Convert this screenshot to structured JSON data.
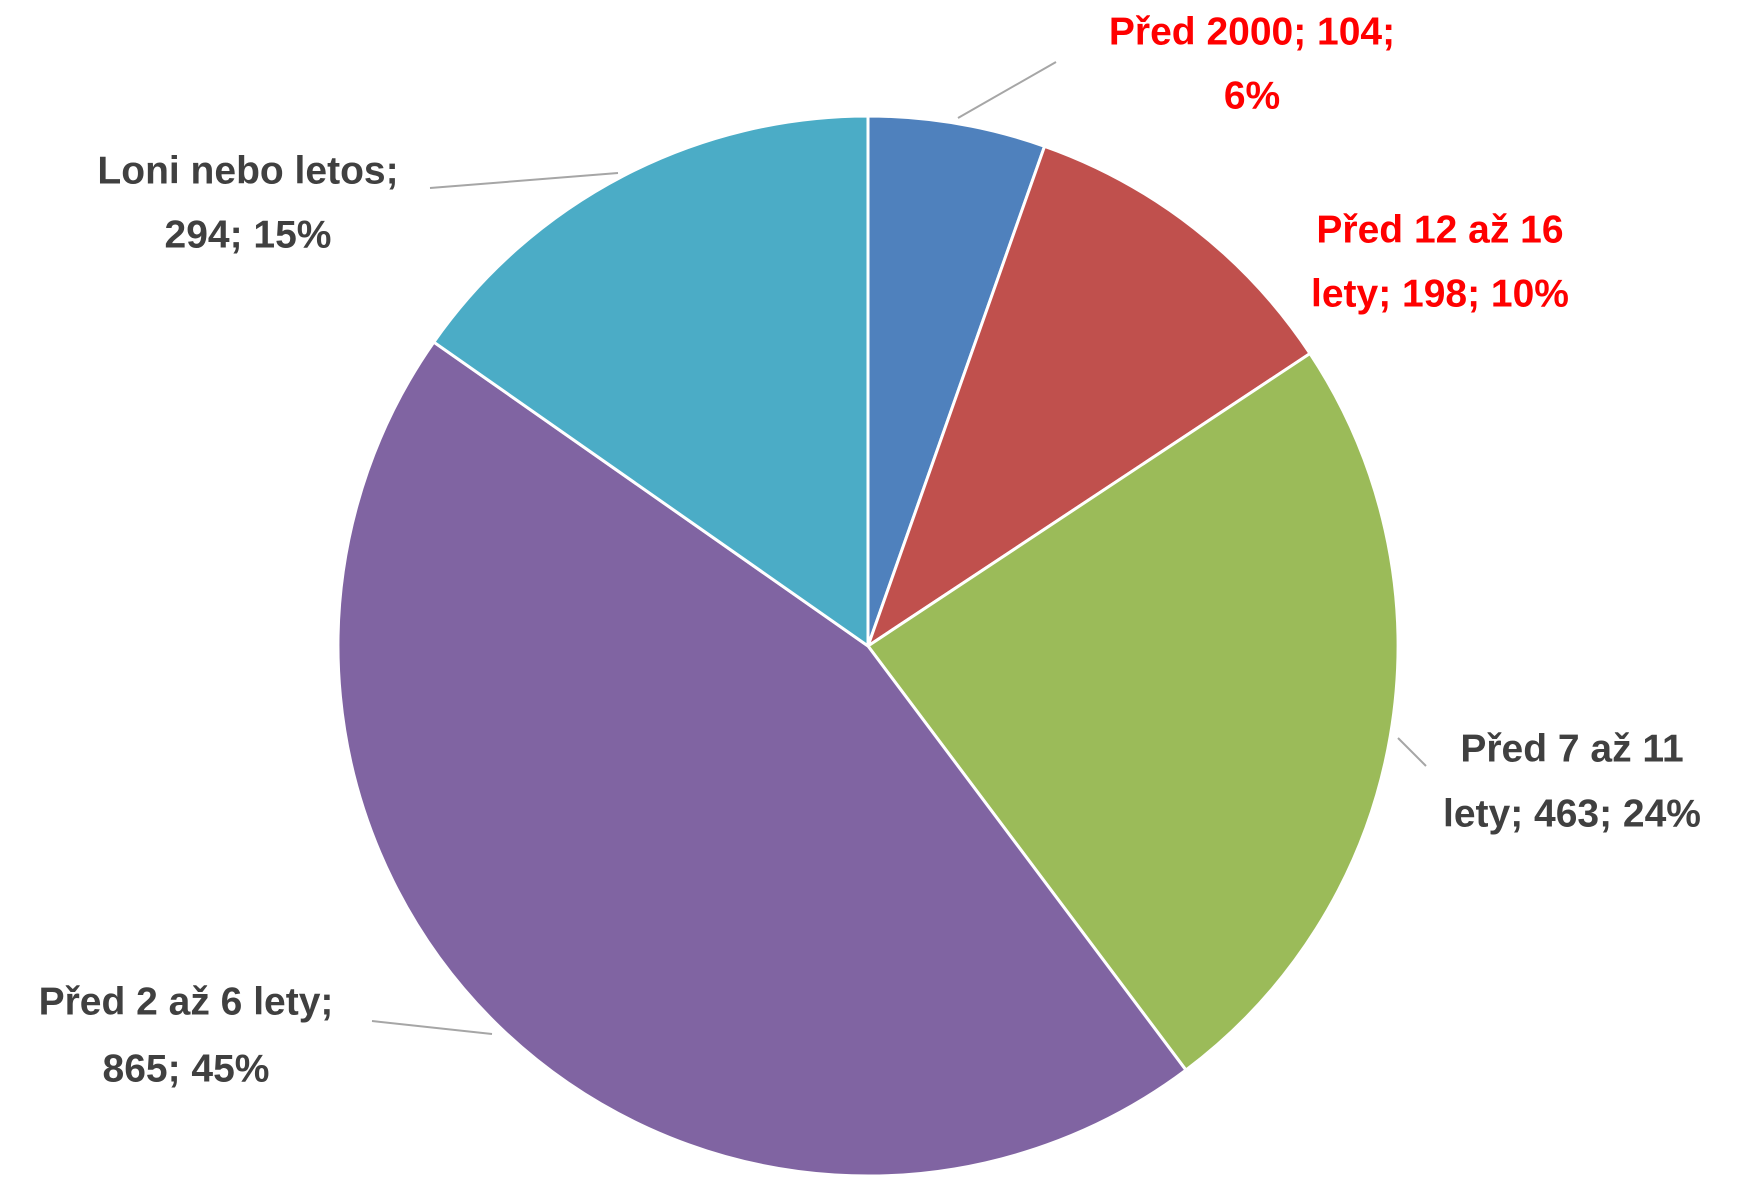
{
  "chart_data": {
    "type": "pie",
    "values": [
      104,
      198,
      463,
      865,
      294
    ],
    "value_labels": [
      [
        "Před 2000; 104;",
        "6%"
      ],
      [
        "Před 12 až 16",
        "lety; 198; 10%"
      ],
      [
        "Před 7 až 11",
        "lety; 463; 24%"
      ],
      [
        "Před 2 až 6 lety;",
        "865; 45%"
      ],
      [
        "Loni nebo letos;",
        "294; 15%"
      ]
    ],
    "colors": [
      "#4f81bd",
      "#c0504d",
      "#9bbb59",
      "#8064a2",
      "#4bacc6"
    ],
    "label_colors": [
      "#ff0000",
      "#ff0000",
      "#404040",
      "#404040",
      "#404040"
    ]
  }
}
